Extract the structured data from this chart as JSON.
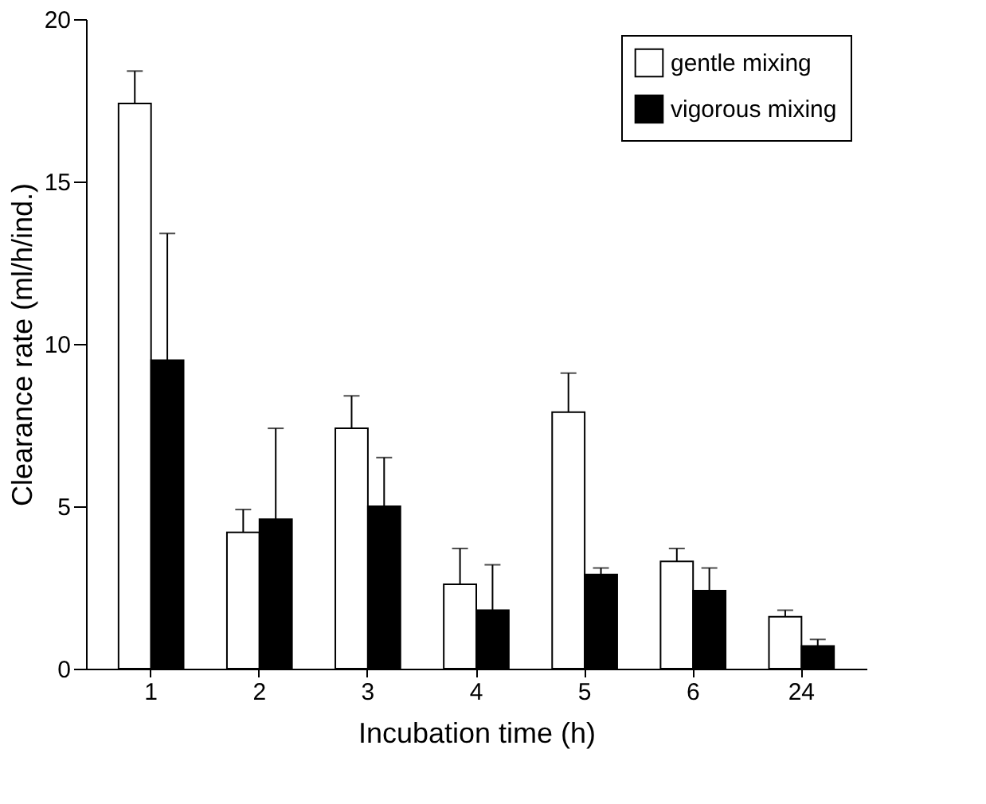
{
  "chart_data": {
    "type": "bar",
    "xlabel": "Incubation time (h)",
    "ylabel": "Clearance rate (ml/h/ind.)",
    "categories": [
      "1",
      "2",
      "3",
      "4",
      "5",
      "6",
      "24"
    ],
    "series": [
      {
        "name": "gentle mixing",
        "color": "#ffffff",
        "values": [
          17.4,
          4.2,
          7.4,
          2.6,
          7.9,
          3.3,
          1.6
        ],
        "errors": [
          1.0,
          0.7,
          1.0,
          1.1,
          1.2,
          0.4,
          0.2
        ]
      },
      {
        "name": "vigorous mixing",
        "color": "#000000",
        "values": [
          9.5,
          4.6,
          5.0,
          1.8,
          2.9,
          2.4,
          0.7
        ],
        "errors": [
          3.9,
          2.8,
          1.5,
          1.4,
          0.2,
          0.7,
          0.2
        ]
      }
    ],
    "ylim": [
      0,
      20
    ],
    "yticks": [
      0,
      5,
      10,
      15,
      20
    ],
    "grid": false,
    "legend": "top right"
  }
}
